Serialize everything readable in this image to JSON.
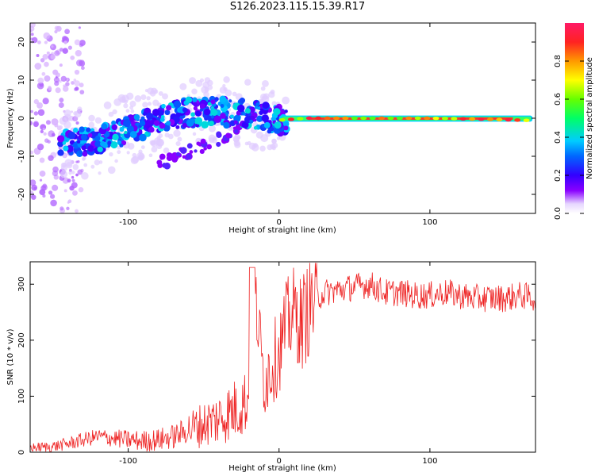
{
  "title": "S126.2023.115.15.39.R17",
  "colors": {
    "snr_line": "#ee2222",
    "axis": "#000000"
  },
  "chart_data": [
    {
      "type": "heatmap",
      "xlabel": "Height of straight line (km)",
      "ylabel": "Frequency (Hz)",
      "xlim": [
        -165,
        170
      ],
      "ylim": [
        -25,
        25
      ],
      "xticks": [
        -100,
        0,
        100
      ],
      "yticks": [
        -20,
        -10,
        0,
        10,
        20
      ],
      "colorbar": {
        "label": "Normalized spectral amplitude",
        "range": [
          0,
          1
        ],
        "ticks": [
          "0.0",
          "0.2",
          "0.4",
          "0.6",
          "0.8"
        ]
      },
      "ridge": [
        {
          "x": -140,
          "y": -6.5
        },
        {
          "x": -120,
          "y": -6
        },
        {
          "x": -100,
          "y": -3
        },
        {
          "x": -80,
          "y": -0.5
        },
        {
          "x": -60,
          "y": 1.5
        },
        {
          "x": -40,
          "y": 1.8
        },
        {
          "x": -20,
          "y": 1
        },
        {
          "x": 0,
          "y": -0.5
        },
        {
          "x": 20,
          "y": 0
        },
        {
          "x": 60,
          "y": 0
        },
        {
          "x": 100,
          "y": 0
        },
        {
          "x": 140,
          "y": -0.3
        },
        {
          "x": 168,
          "y": -0.6
        }
      ]
    },
    {
      "type": "line",
      "xlabel": "Height of straight line (km)",
      "ylabel": "SNR (10 * v/v)",
      "xlim": [
        -165,
        170
      ],
      "ylim": [
        0,
        340
      ],
      "xticks": [
        -100,
        0,
        100
      ],
      "yticks": [
        0,
        100,
        200,
        300
      ],
      "series": [
        {
          "x": [
            -165,
            -150,
            -140,
            -130,
            -120,
            -110,
            -100,
            -90,
            -80,
            -70,
            -60,
            -50,
            -40,
            -30,
            -20,
            -18,
            -10,
            0,
            5,
            10,
            15,
            20,
            25,
            30,
            40,
            50,
            60,
            70,
            80,
            90,
            100,
            110,
            120,
            130,
            140,
            150,
            160,
            170
          ],
          "y": [
            8,
            10,
            15,
            22,
            28,
            25,
            22,
            20,
            22,
            28,
            40,
            50,
            60,
            75,
            95,
            330,
            130,
            180,
            230,
            250,
            230,
            260,
            275,
            285,
            290,
            295,
            300,
            285,
            285,
            280,
            280,
            285,
            280,
            275,
            275,
            275,
            280,
            275
          ]
        }
      ]
    }
  ]
}
